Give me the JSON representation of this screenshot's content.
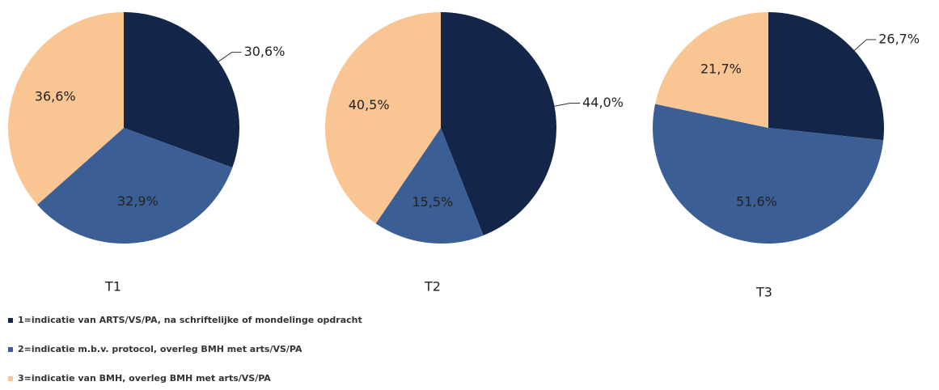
{
  "chart_data": [
    {
      "type": "pie",
      "title": "T1",
      "values": [
        30.6,
        32.9,
        36.6
      ],
      "value_labels": [
        "30,6%",
        "32,9%",
        "36,6%"
      ]
    },
    {
      "type": "pie",
      "title": "T2",
      "values": [
        44.0,
        15.5,
        40.5
      ],
      "value_labels": [
        "44,0%",
        "15,5%",
        "40,5%"
      ]
    },
    {
      "type": "pie",
      "title": "T3",
      "values": [
        26.7,
        51.6,
        21.7
      ],
      "value_labels": [
        "26,7%",
        "51,6%",
        "21,7%"
      ]
    }
  ],
  "legend": [
    {
      "name": "1=indicatie van ARTS/VS/PA, na schriftelijke of mondelinge opdracht",
      "color": "#14254a"
    },
    {
      "name": "2=indicatie m.b.v. protocol, overleg BMH met arts/VS/PA",
      "color": "#3b5f94"
    },
    {
      "name": "3=indicatie van  BMH, overleg BMH met arts/VS/PA",
      "color": "#f9c592"
    }
  ]
}
